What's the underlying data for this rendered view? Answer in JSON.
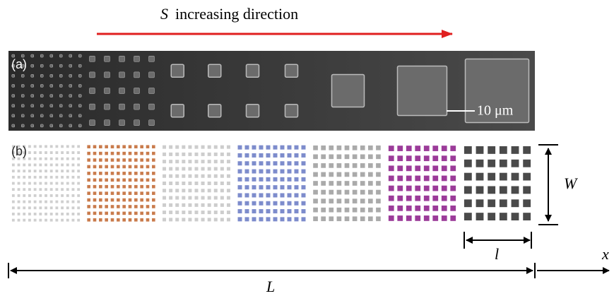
{
  "header": {
    "symbol": "S",
    "text": "increasing direction"
  },
  "panel_a": {
    "label": "(a)",
    "scale_bar": "10 μm"
  },
  "panel_b": {
    "label": "(b)",
    "width_symbol": "W",
    "cell_symbol": "l"
  },
  "axis": {
    "length_symbol": "L",
    "position_symbol": "x"
  }
}
